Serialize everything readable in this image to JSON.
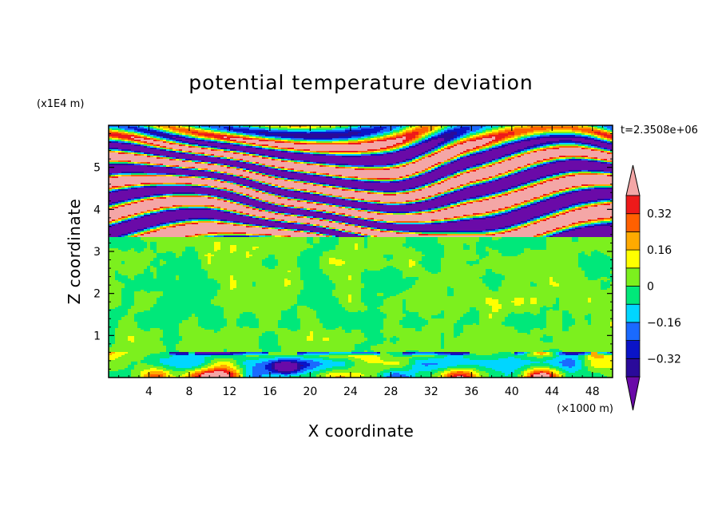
{
  "chart_data": {
    "type": "heatmap",
    "title": "potential temperature deviation",
    "xlabel": "X coordinate",
    "ylabel": "Z coordinate",
    "x_unit": "(×1000 m)",
    "y_unit": "(x1E4 m)",
    "time_label": "t=2.3508e+06",
    "xlim": [
      0,
      50
    ],
    "ylim": [
      0,
      6
    ],
    "x_ticks": [
      4,
      8,
      12,
      16,
      20,
      24,
      28,
      32,
      36,
      40,
      44,
      48
    ],
    "y_ticks": [
      1,
      2,
      3,
      4,
      5
    ],
    "x_tick_labels": [
      "4",
      "8",
      "12",
      "16",
      "20",
      "24",
      "28",
      "32",
      "36",
      "40",
      "44",
      "48"
    ],
    "y_tick_labels": [
      "1",
      "2",
      "3",
      "4",
      "5"
    ],
    "colorbar": {
      "levels": [
        -0.4,
        -0.32,
        -0.24,
        -0.16,
        -0.08,
        0,
        0.08,
        0.16,
        0.24,
        0.32,
        0.4
      ],
      "labeled_levels": [
        0.32,
        0.16,
        0,
        -0.16,
        -0.32
      ],
      "labels": [
        "0.32",
        "0.16",
        "0",
        "−0.16",
        "−0.32"
      ],
      "colors": [
        "#6a0aa8",
        "#2a0a9a",
        "#0a14c8",
        "#1a6aff",
        "#00d6ff",
        "#00e87a",
        "#7cf01e",
        "#ffff00",
        "#ffaa00",
        "#ff6000",
        "#ee1a1a",
        "#f4a6a6"
      ],
      "over_color": "#f4a6a6",
      "under_color": "#6a0aa8"
    },
    "bands": [
      {
        "z": [
          0.0,
          0.6
        ],
        "pattern": "near-surface mixed",
        "dominant": "#00e87a"
      },
      {
        "z": [
          0.6,
          3.35
        ],
        "pattern": "weak",
        "dominant": "#7cf01e"
      },
      {
        "z": [
          3.35,
          6.0
        ],
        "pattern": "strong layered",
        "dominant": "#f4a6a6"
      }
    ]
  }
}
